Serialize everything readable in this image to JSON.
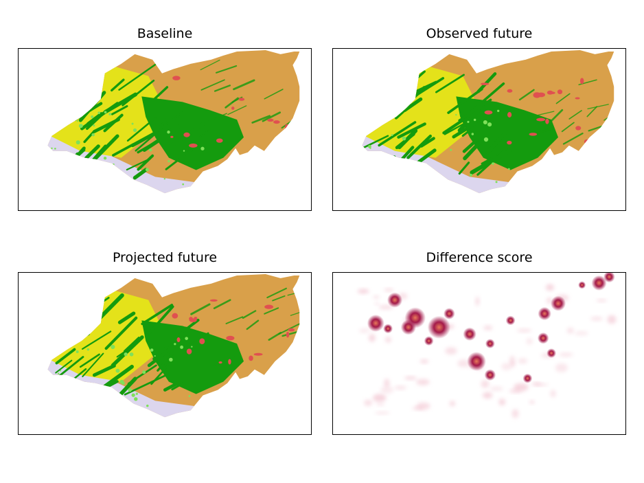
{
  "panels": [
    {
      "title": "Baseline",
      "kind": "landcover",
      "variant": 0
    },
    {
      "title": "Observed future",
      "kind": "landcover",
      "variant": 1
    },
    {
      "title": "Projected future",
      "kind": "landcover",
      "variant": 2
    },
    {
      "title": "Difference score",
      "kind": "heatmap",
      "variant": 3
    }
  ],
  "palette": {
    "bare": "#d9a04a",
    "forest": "#149b0e",
    "crop": "#e4e21a",
    "grass": "#7fe05a",
    "urban": "#e05050",
    "snow": "#dcd6ee",
    "heat_low": "#f3c7d3",
    "heat_mid": "#a31a4a",
    "heat_high": "#e87a5a"
  }
}
